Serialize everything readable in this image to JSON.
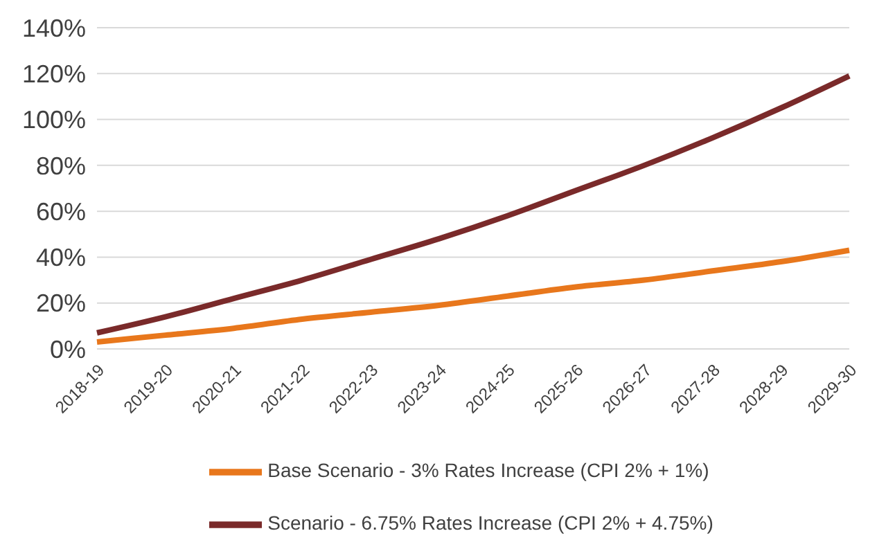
{
  "chart_data": {
    "type": "line",
    "categories": [
      "2018-19",
      "2019-20",
      "2020-21",
      "2021-22",
      "2022-23",
      "2023-24",
      "2024-25",
      "2025-26",
      "2026-27",
      "2027-28",
      "2028-29",
      "2029-30"
    ],
    "series": [
      {
        "name": "Base Scenario - 3% Rates Increase (CPI 2% + 1%)",
        "color": "#e8771c",
        "values": [
          3,
          6,
          9,
          13,
          16,
          19,
          23,
          27,
          30,
          34,
          38,
          43
        ]
      },
      {
        "name": "Scenario - 6.75% Rates Increase (CPI 2% + 4.75%)",
        "color": "#7a2a2a",
        "values": [
          7,
          14,
          22,
          30,
          39,
          48,
          58,
          69,
          80,
          92,
          105,
          119
        ]
      }
    ],
    "ylim": [
      0,
      140
    ],
    "yticks": [
      {
        "value": 0,
        "label": "0%"
      },
      {
        "value": 20,
        "label": "20%"
      },
      {
        "value": 40,
        "label": "40%"
      },
      {
        "value": 60,
        "label": "60%"
      },
      {
        "value": 80,
        "label": "80%"
      },
      {
        "value": 100,
        "label": "100%"
      },
      {
        "value": 120,
        "label": "120%"
      },
      {
        "value": 140,
        "label": "140%"
      }
    ],
    "grid": "y",
    "legend": "bottom",
    "marker": "none",
    "line_style": "solid"
  }
}
